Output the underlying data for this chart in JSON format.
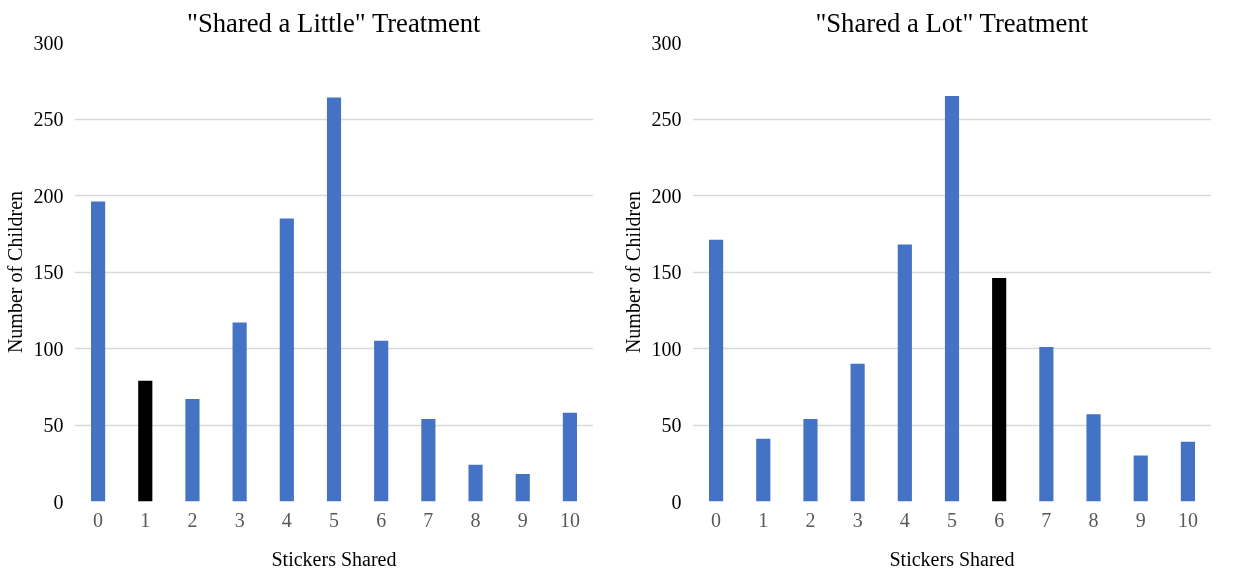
{
  "chart_data": [
    {
      "type": "bar",
      "title": "\"Shared a Little\" Treatment",
      "xlabel": "Stickers Shared",
      "ylabel": "Number of Children",
      "categories": [
        "0",
        "1",
        "2",
        "3",
        "4",
        "5",
        "6",
        "7",
        "8",
        "9",
        "10"
      ],
      "values": [
        196,
        79,
        67,
        117,
        185,
        264,
        105,
        54,
        24,
        18,
        58
      ],
      "colors": [
        "#4472c4",
        "#000000",
        "#4472c4",
        "#4472c4",
        "#4472c4",
        "#4472c4",
        "#4472c4",
        "#4472c4",
        "#4472c4",
        "#4472c4",
        "#4472c4"
      ],
      "ylim": [
        0,
        300
      ],
      "yticks": [
        0,
        50,
        100,
        150,
        200,
        250,
        300
      ],
      "grid": "y"
    },
    {
      "type": "bar",
      "title": "\"Shared a Lot\" Treatment",
      "xlabel": "Stickers Shared",
      "ylabel": "Number of Children",
      "categories": [
        "0",
        "1",
        "2",
        "3",
        "4",
        "5",
        "6",
        "7",
        "8",
        "9",
        "10"
      ],
      "values": [
        171,
        41,
        54,
        90,
        168,
        265,
        146,
        101,
        57,
        30,
        39
      ],
      "colors": [
        "#4472c4",
        "#4472c4",
        "#4472c4",
        "#4472c4",
        "#4472c4",
        "#4472c4",
        "#000000",
        "#4472c4",
        "#4472c4",
        "#4472c4",
        "#4472c4"
      ],
      "ylim": [
        0,
        300
      ],
      "yticks": [
        0,
        50,
        100,
        150,
        200,
        250,
        300
      ],
      "grid": "y"
    }
  ]
}
